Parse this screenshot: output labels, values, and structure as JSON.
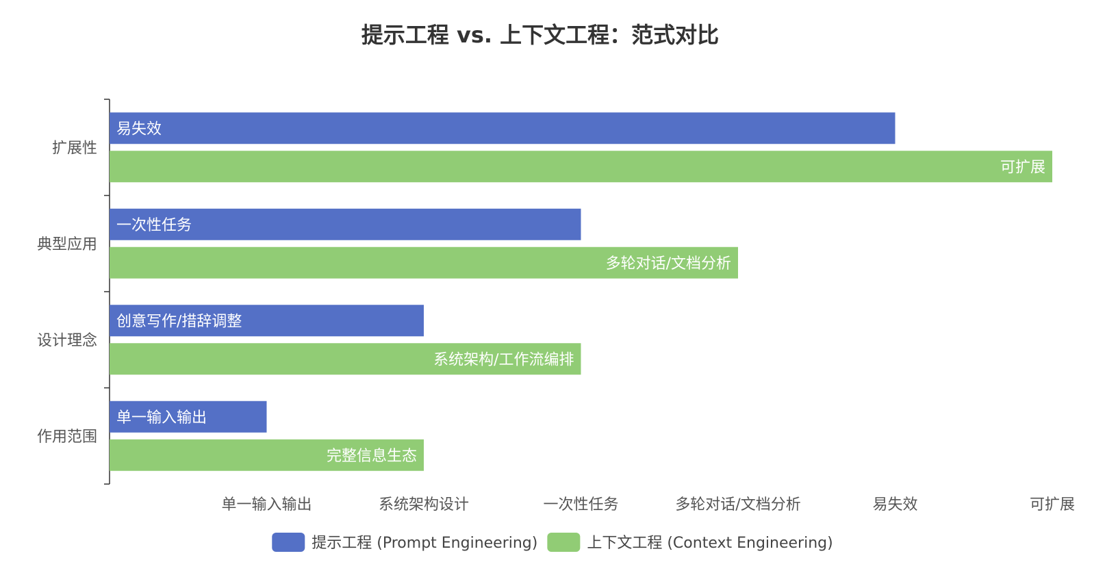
{
  "chart_data": {
    "type": "bar",
    "orientation": "horizontal",
    "title": "提示工程 vs. 上下文工程：范式对比",
    "categories": [
      "扩展性",
      "典型应用",
      "设计理念",
      "作用范围"
    ],
    "x_ticks": [
      {
        "value": 1,
        "label": "单一输入输出"
      },
      {
        "value": 2,
        "label": "系统架构设计"
      },
      {
        "value": 3,
        "label": "一次性任务"
      },
      {
        "value": 4,
        "label": "多轮对话/文档分析"
      },
      {
        "value": 5,
        "label": "易失效"
      },
      {
        "value": 6,
        "label": "可扩展"
      }
    ],
    "xlim": [
      0,
      6
    ],
    "series": [
      {
        "name": "提示工程 (Prompt Engineering)",
        "color": "#5470c6",
        "values": [
          5,
          3,
          2,
          1
        ],
        "labels": [
          "易失效",
          "一次性任务",
          "创意写作/措辞调整",
          "单一输入输出"
        ],
        "label_position": "insideLeft"
      },
      {
        "name": "上下文工程 (Context Engineering)",
        "color": "#91cc75",
        "values": [
          6,
          4,
          3,
          2
        ],
        "labels": [
          "可扩展",
          "多轮对话/文档分析",
          "系统架构/工作流编排",
          "完整信息生态"
        ],
        "label_position": "insideRight"
      }
    ],
    "legend": "bottom-center",
    "grid": false
  }
}
